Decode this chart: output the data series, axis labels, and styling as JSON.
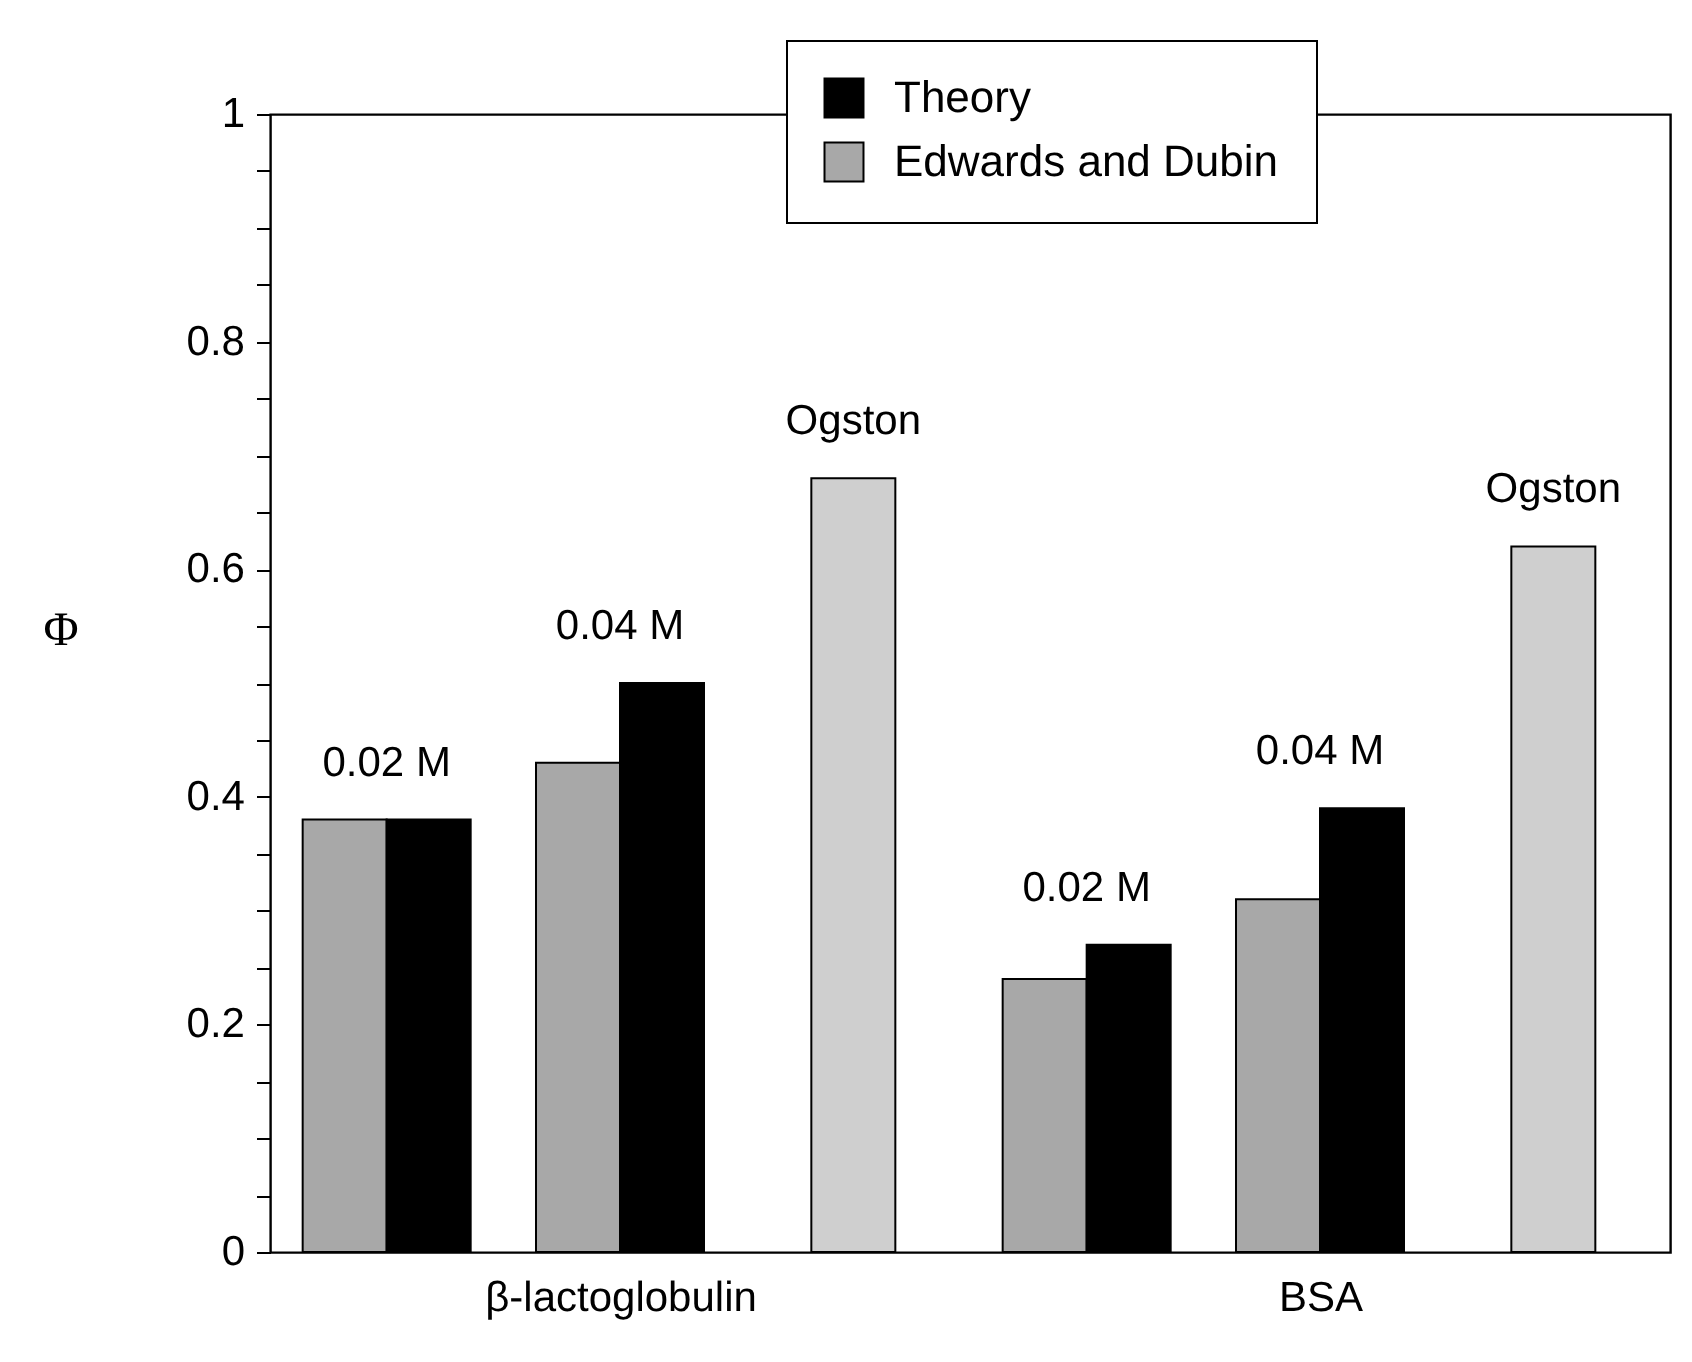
{
  "chart_data": {
    "type": "bar",
    "ylabel": "Φ",
    "categories": [
      null,
      "β-lactoglobulin",
      null,
      null,
      "BSA",
      null
    ],
    "series": [
      {
        "name": "Edwards and Dubin",
        "color": "#a8a8a8",
        "values": [
          0.38,
          0.43,
          null,
          0.24,
          0.31,
          null
        ]
      },
      {
        "name": "Theory",
        "color": "#000000",
        "values": [
          0.38,
          0.5,
          null,
          0.27,
          0.39,
          null
        ]
      },
      {
        "color": "#cfcfcf",
        "values": [
          null,
          null,
          0.68,
          null,
          null,
          0.62
        ]
      }
    ],
    "annotations": [
      "0.02 M",
      "0.04 M",
      "Ogston",
      "0.02 M",
      "0.04 M",
      "Ogston"
    ],
    "ylim": [
      0,
      1
    ],
    "yticks": [
      0,
      {
        "value": 0.05,
        "label": null
      },
      {
        "value": 0.1,
        "label": null
      },
      {
        "value": 0.15,
        "label": null
      },
      0.2,
      {
        "value": 0.25,
        "label": null
      },
      {
        "value": 0.3,
        "label": null
      },
      {
        "value": 0.35,
        "label": null
      },
      0.4,
      {
        "value": 0.45,
        "label": null
      },
      {
        "value": 0.5,
        "label": null
      },
      {
        "value": 0.55,
        "label": null
      },
      0.6,
      {
        "value": 0.65,
        "label": null
      },
      {
        "value": 0.7,
        "label": null
      },
      {
        "value": 0.75,
        "label": null
      },
      0.8,
      {
        "value": 0.85,
        "label": null
      },
      {
        "value": 0.9,
        "label": null
      },
      {
        "value": 0.95,
        "label": null
      },
      1
    ],
    "legend": "top right",
    "grid": false
  }
}
